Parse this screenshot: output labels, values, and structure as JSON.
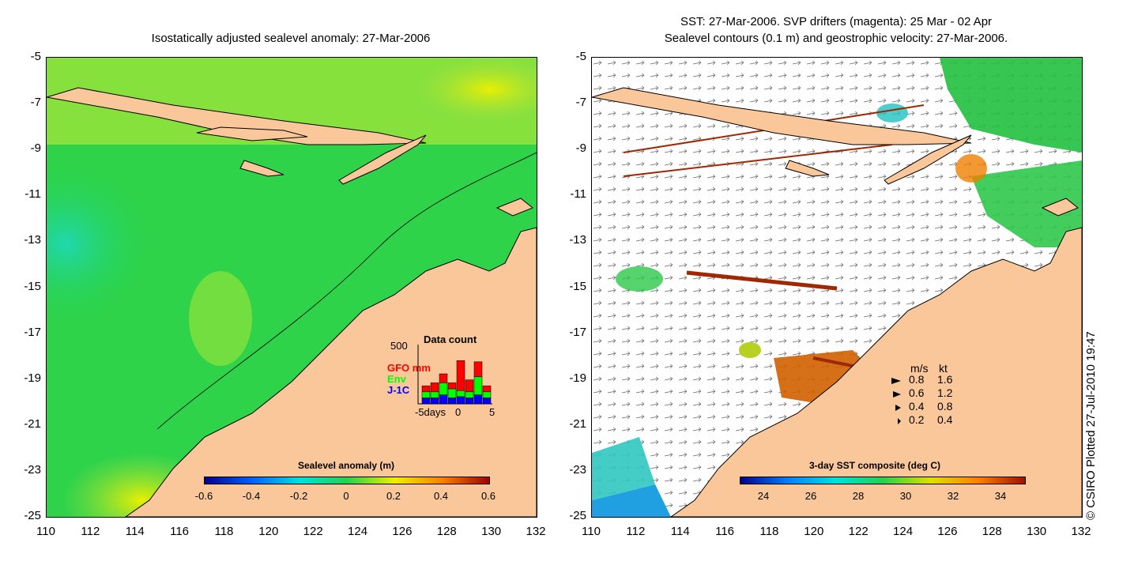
{
  "left_panel": {
    "title": "Isostatically adjusted sealevel anomaly: 27-Mar-2006",
    "y_ticks": [
      "-5",
      "-7",
      "-9",
      "-11",
      "-13",
      "-15",
      "-17",
      "-19",
      "-21",
      "-23",
      "-25"
    ],
    "x_ticks": [
      "110",
      "112",
      "114",
      "116",
      "118",
      "120",
      "122",
      "124",
      "126",
      "128",
      "130",
      "132"
    ],
    "colorbar": {
      "title": "Sealevel anomaly (m)",
      "ticks": [
        "-0.6",
        "-0.4",
        "-0.2",
        "0",
        "0.2",
        "0.4",
        "0.6"
      ]
    },
    "data_count": {
      "title": "Data count",
      "ymax_label": "500",
      "legend": [
        {
          "label": "GFO mm",
          "color": "#ff0000"
        },
        {
          "label": "Env",
          "color": "#00ff00"
        },
        {
          "label": "J-1C",
          "color": "#0000ff"
        }
      ],
      "x_labels": [
        "-5days",
        "0",
        "5"
      ],
      "bars": [
        {
          "blue": 0.1,
          "green": 0.1,
          "red": 0.1
        },
        {
          "blue": 0.1,
          "green": 0.1,
          "red": 0.15
        },
        {
          "blue": 0.15,
          "green": 0.2,
          "red": 0.15
        },
        {
          "blue": 0.1,
          "green": 0.15,
          "red": 0.1
        },
        {
          "blue": 0.12,
          "green": 0.1,
          "red": 0.5
        },
        {
          "blue": 0.1,
          "green": 0.1,
          "red": 0.2
        },
        {
          "blue": 0.15,
          "green": 0.3,
          "red": 0.25
        },
        {
          "blue": 0.1,
          "green": 0.1,
          "red": 0.1
        }
      ]
    }
  },
  "right_panel": {
    "title_line1": "SST: 27-Mar-2006. SVP drifters (magenta): 25 Mar - 02 Apr",
    "title_line2": "Sealevel contours (0.1 m) and geostrophic velocity: 27-Mar-2006.",
    "y_ticks": [
      "-5",
      "-7",
      "-9",
      "-11",
      "-13",
      "-15",
      "-17",
      "-19",
      "-21",
      "-23",
      "-25"
    ],
    "x_ticks": [
      "110",
      "112",
      "114",
      "116",
      "118",
      "120",
      "122",
      "124",
      "126",
      "128",
      "130",
      "132"
    ],
    "colorbar": {
      "title": "3-day SST composite (deg C)",
      "ticks": [
        "24",
        "26",
        "28",
        "30",
        "32",
        "34"
      ]
    },
    "velocity_legend": {
      "header_ms": "m/s",
      "header_kt": "kt",
      "rows": [
        {
          "ms": "0.8",
          "kt": "1.6"
        },
        {
          "ms": "0.6",
          "kt": "1.2"
        },
        {
          "ms": "0.4",
          "kt": "0.8"
        },
        {
          "ms": "0.2",
          "kt": "0.4"
        }
      ]
    }
  },
  "credit": "© CSIRO Plotted 27-Jul-2010 19:47",
  "colors": {
    "land": "#f9c79a",
    "ocean_green": "#22d34a",
    "anomaly_scale": [
      "#00008f",
      "#0060ff",
      "#00e0e0",
      "#22d34a",
      "#f0f000",
      "#ff8000",
      "#a00000"
    ],
    "sst_scale": [
      "#00008f",
      "#0080ff",
      "#00e0e0",
      "#22d34a",
      "#e0e000",
      "#ff8000",
      "#a01000"
    ]
  }
}
